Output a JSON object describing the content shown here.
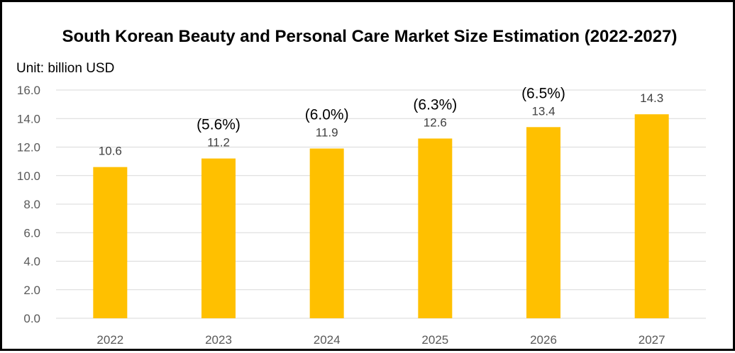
{
  "chart_data": {
    "type": "bar",
    "title": "South Korean Beauty and Personal Care Market Size Estimation (2022-2027)",
    "unit_label": "Unit: billion USD",
    "categories": [
      "2022",
      "2023",
      "2024",
      "2025",
      "2026",
      "2027"
    ],
    "values": [
      10.6,
      11.2,
      11.9,
      12.6,
      13.4,
      14.3
    ],
    "value_labels": [
      "10.6",
      "11.2",
      "11.9",
      "12.6",
      "13.4",
      "14.3"
    ],
    "growth_labels": [
      "",
      "(5.6%)",
      "(6.0%)",
      "(6.3%)",
      "(6.5%)",
      ""
    ],
    "y_ticks": [
      "0.0",
      "2.0",
      "4.0",
      "6.0",
      "8.0",
      "10.0",
      "12.0",
      "14.0",
      "16.0"
    ],
    "ylim": [
      0,
      16
    ],
    "grid": true,
    "bar_color": "#FFC000"
  }
}
